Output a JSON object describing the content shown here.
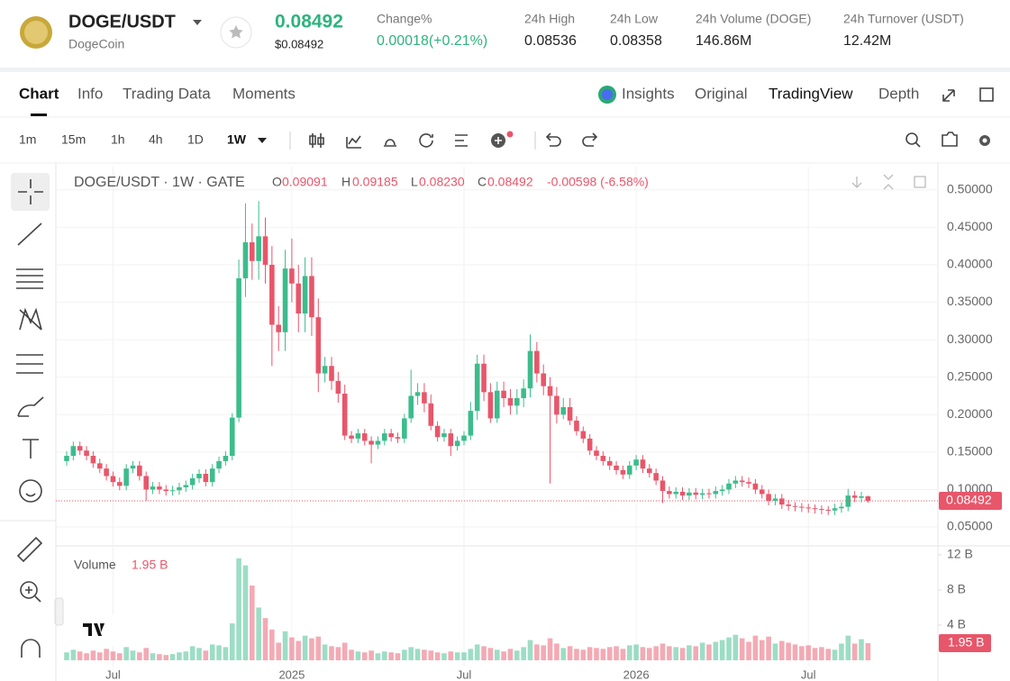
{
  "header": {
    "symbol": "DOGE/USDT",
    "name": "DogeCoin",
    "price": "0.08492",
    "price_usd": "$0.08492",
    "change_label": "Change%",
    "change": "0.00018(+0.21%)",
    "stats": [
      {
        "label": "24h High",
        "value": "0.08536"
      },
      {
        "label": "24h Low",
        "value": "0.08358"
      },
      {
        "label": "24h Volume (DOGE)",
        "value": "146.86M"
      },
      {
        "label": "24h Turnover (USDT)",
        "value": "12.42M"
      }
    ]
  },
  "nav": {
    "tabs": [
      "Chart",
      "Info",
      "Trading Data",
      "Moments"
    ],
    "views": [
      "Insights",
      "Original",
      "TradingView",
      "Depth"
    ],
    "intervals": [
      "1m",
      "15m",
      "1h",
      "4h",
      "1D",
      "1W"
    ]
  },
  "chart_data": {
    "type": "candlestick",
    "title": "DOGE/USDT · 1W · GATE",
    "legend": {
      "o_label": "O",
      "o": "0.09091",
      "h_label": "H",
      "h": "0.09185",
      "l_label": "L",
      "l": "0.08230",
      "c_label": "C",
      "c": "0.08492",
      "change": "-0.00598 (-6.58%)"
    },
    "volume_title": "Volume",
    "volume_label": "1.95 B",
    "up_color": "#3cbc8c",
    "down_color": "#e8566a",
    "categories": [
      null,
      null,
      null,
      null,
      null,
      null,
      null,
      "Jul",
      null,
      null,
      null,
      null,
      null,
      null,
      null,
      null,
      null,
      null,
      null,
      null,
      null,
      null,
      null,
      null,
      null,
      null,
      null,
      null,
      null,
      null,
      null,
      null,
      null,
      null,
      "2025",
      null,
      null,
      null,
      null,
      null,
      null,
      null,
      null,
      null,
      null,
      null,
      null,
      null,
      null,
      null,
      null,
      null,
      null,
      null,
      null,
      null,
      null,
      null,
      null,
      null,
      "Jul",
      null,
      null,
      null,
      null,
      null,
      null,
      null,
      null,
      null,
      null,
      null,
      null,
      null,
      null,
      null,
      null,
      null,
      null,
      null,
      null,
      null,
      null,
      null,
      null,
      null,
      "2026",
      null,
      null,
      null,
      null,
      null,
      null,
      null,
      null,
      null,
      null,
      null,
      null,
      null,
      null,
      null,
      null,
      null,
      null,
      null,
      null,
      null,
      null,
      null,
      null,
      null,
      "Jul",
      null,
      null,
      null,
      null,
      null,
      null,
      null,
      null,
      null
    ],
    "open": [
      0.138,
      0.145,
      0.158,
      0.152,
      0.145,
      0.135,
      0.128,
      0.118,
      0.11,
      0.105,
      0.128,
      0.132,
      0.118,
      0.1,
      0.104,
      0.1,
      0.098,
      0.099,
      0.103,
      0.106,
      0.115,
      0.121,
      0.11,
      0.128,
      0.138,
      0.145,
      0.196,
      0.382,
      0.43,
      0.405,
      0.438,
      0.4,
      0.32,
      0.31,
      0.395,
      0.375,
      0.335,
      0.385,
      0.33,
      0.255,
      0.265,
      0.245,
      0.228,
      0.172,
      0.168,
      0.175,
      0.165,
      0.16,
      0.165,
      0.175,
      0.17,
      0.168,
      0.195,
      0.225,
      0.23,
      0.215,
      0.185,
      0.17,
      0.175,
      0.158,
      0.165,
      0.172,
      0.205,
      0.268,
      0.23,
      0.195,
      0.232,
      0.222,
      0.212,
      0.222,
      0.235,
      0.285,
      0.255,
      0.238,
      0.225,
      0.2,
      0.21,
      0.192,
      0.178,
      0.168,
      0.152,
      0.145,
      0.138,
      0.132,
      0.126,
      0.12,
      0.132,
      0.14,
      0.128,
      0.122,
      0.112,
      0.098,
      0.094,
      0.097,
      0.092,
      0.096,
      0.093,
      0.095,
      0.094,
      0.098,
      0.1,
      0.108,
      0.112,
      0.11,
      0.108,
      0.1,
      0.094,
      0.085,
      0.088,
      0.08,
      0.078,
      0.077,
      0.076,
      0.075,
      0.074,
      0.073,
      0.072,
      0.075,
      0.077,
      0.092,
      0.089,
      0.09091
    ],
    "high": [
      0.151,
      0.164,
      0.164,
      0.158,
      0.151,
      0.141,
      0.134,
      0.124,
      0.116,
      0.134,
      0.138,
      0.138,
      0.124,
      0.11,
      0.11,
      0.106,
      0.105,
      0.109,
      0.112,
      0.121,
      0.127,
      0.127,
      0.134,
      0.144,
      0.151,
      0.202,
      0.407,
      0.482,
      0.455,
      0.485,
      0.463,
      0.425,
      0.345,
      0.42,
      0.435,
      0.4,
      0.41,
      0.41,
      0.355,
      0.277,
      0.277,
      0.257,
      0.24,
      0.178,
      0.181,
      0.181,
      0.171,
      0.171,
      0.181,
      0.181,
      0.176,
      0.201,
      0.26,
      0.242,
      0.242,
      0.227,
      0.191,
      0.181,
      0.181,
      0.171,
      0.178,
      0.217,
      0.28,
      0.28,
      0.242,
      0.244,
      0.244,
      0.234,
      0.234,
      0.247,
      0.307,
      0.297,
      0.267,
      0.25,
      0.237,
      0.222,
      0.222,
      0.198,
      0.184,
      0.174,
      0.158,
      0.151,
      0.144,
      0.138,
      0.132,
      0.138,
      0.146,
      0.146,
      0.134,
      0.128,
      0.118,
      0.104,
      0.103,
      0.103,
      0.102,
      0.102,
      0.101,
      0.101,
      0.104,
      0.106,
      0.114,
      0.118,
      0.118,
      0.116,
      0.114,
      0.106,
      0.1,
      0.094,
      0.094,
      0.086,
      0.083,
      0.082,
      0.081,
      0.08,
      0.079,
      0.078,
      0.081,
      0.083,
      0.101,
      0.098,
      0.097,
      0.09185
    ],
    "low": [
      0.132,
      0.139,
      0.146,
      0.139,
      0.129,
      0.122,
      0.112,
      0.104,
      0.099,
      0.099,
      0.122,
      0.112,
      0.085,
      0.094,
      0.094,
      0.092,
      0.092,
      0.093,
      0.097,
      0.1,
      0.109,
      0.104,
      0.104,
      0.122,
      0.132,
      0.139,
      0.19,
      0.357,
      0.38,
      0.38,
      0.375,
      0.265,
      0.285,
      0.285,
      0.35,
      0.31,
      0.31,
      0.305,
      0.23,
      0.243,
      0.233,
      0.216,
      0.166,
      0.162,
      0.162,
      0.159,
      0.135,
      0.154,
      0.159,
      0.164,
      0.162,
      0.162,
      0.189,
      0.213,
      0.203,
      0.179,
      0.164,
      0.164,
      0.145,
      0.152,
      0.159,
      0.166,
      0.193,
      0.218,
      0.189,
      0.189,
      0.21,
      0.2,
      0.2,
      0.21,
      0.223,
      0.243,
      0.226,
      0.108,
      0.188,
      0.194,
      0.186,
      0.172,
      0.162,
      0.146,
      0.139,
      0.132,
      0.126,
      0.12,
      0.114,
      0.114,
      0.126,
      0.122,
      0.116,
      0.106,
      0.082,
      0.088,
      0.088,
      0.086,
      0.086,
      0.087,
      0.087,
      0.088,
      0.088,
      0.092,
      0.094,
      0.102,
      0.104,
      0.102,
      0.094,
      0.088,
      0.079,
      0.079,
      0.074,
      0.072,
      0.071,
      0.07,
      0.069,
      0.068,
      0.067,
      0.066,
      0.066,
      0.069,
      0.071,
      0.083,
      0.083,
      0.0823
    ],
    "close": [
      0.145,
      0.158,
      0.152,
      0.145,
      0.135,
      0.128,
      0.118,
      0.11,
      0.105,
      0.128,
      0.132,
      0.118,
      0.1,
      0.104,
      0.1,
      0.098,
      0.099,
      0.103,
      0.106,
      0.115,
      0.121,
      0.11,
      0.128,
      0.138,
      0.145,
      0.196,
      0.382,
      0.43,
      0.405,
      0.438,
      0.4,
      0.32,
      0.31,
      0.395,
      0.375,
      0.335,
      0.385,
      0.33,
      0.255,
      0.265,
      0.245,
      0.228,
      0.172,
      0.168,
      0.175,
      0.165,
      0.16,
      0.165,
      0.175,
      0.17,
      0.168,
      0.195,
      0.225,
      0.23,
      0.215,
      0.185,
      0.17,
      0.175,
      0.158,
      0.165,
      0.172,
      0.205,
      0.268,
      0.23,
      0.195,
      0.232,
      0.222,
      0.212,
      0.222,
      0.235,
      0.285,
      0.255,
      0.238,
      0.225,
      0.2,
      0.21,
      0.192,
      0.178,
      0.168,
      0.152,
      0.145,
      0.138,
      0.132,
      0.126,
      0.12,
      0.132,
      0.14,
      0.128,
      0.122,
      0.112,
      0.098,
      0.094,
      0.097,
      0.092,
      0.096,
      0.093,
      0.095,
      0.094,
      0.098,
      0.1,
      0.108,
      0.112,
      0.11,
      0.108,
      0.1,
      0.094,
      0.085,
      0.088,
      0.08,
      0.078,
      0.077,
      0.076,
      0.075,
      0.074,
      0.073,
      0.072,
      0.075,
      0.077,
      0.092,
      0.089,
      0.09091,
      0.08492
    ],
    "volume": [
      0.9,
      1.2,
      1.0,
      0.8,
      1.1,
      0.9,
      1.3,
      1.0,
      0.8,
      1.5,
      1.1,
      0.9,
      1.4,
      0.8,
      0.7,
      0.6,
      0.7,
      0.9,
      1.0,
      1.6,
      1.4,
      1.1,
      1.8,
      1.7,
      1.5,
      4.2,
      11.6,
      10.8,
      8.5,
      6.0,
      4.8,
      3.5,
      2.0,
      3.3,
      2.6,
      2.2,
      2.8,
      2.5,
      2.7,
      1.8,
      1.6,
      1.5,
      2.0,
      1.2,
      1.0,
      0.9,
      1.1,
      0.8,
      1.0,
      0.9,
      0.8,
      1.2,
      1.5,
      1.3,
      1.2,
      1.1,
      0.9,
      0.8,
      1.0,
      0.9,
      0.9,
      1.3,
      1.8,
      1.6,
      1.4,
      1.2,
      1.0,
      1.3,
      1.1,
      1.5,
      2.3,
      1.8,
      1.7,
      2.5,
      1.9,
      1.4,
      1.6,
      1.3,
      1.2,
      1.5,
      1.4,
      1.3,
      1.5,
      1.6,
      1.3,
      1.7,
      1.8,
      1.5,
      1.4,
      1.6,
      1.9,
      1.6,
      1.5,
      1.4,
      1.7,
      1.6,
      2.0,
      1.8,
      2.1,
      2.3,
      2.6,
      2.9,
      2.5,
      2.1,
      2.8,
      2.3,
      2.7,
      1.9,
      2.2,
      2.0,
      1.8,
      1.6,
      1.7,
      1.4,
      1.5,
      1.3,
      1.2,
      1.9,
      2.8,
      1.9,
      2.4,
      1.95
    ],
    "ylim": [
      0.026,
      0.531
    ],
    "yticks": [
      {
        "value": 0.5,
        "label": "0.50000"
      },
      {
        "value": 0.45,
        "label": "0.45000"
      },
      {
        "value": 0.4,
        "label": "0.40000"
      },
      {
        "value": 0.35,
        "label": "0.35000"
      },
      {
        "value": 0.3,
        "label": "0.30000"
      },
      {
        "value": 0.25,
        "label": "0.25000"
      },
      {
        "value": 0.2,
        "label": "0.20000"
      },
      {
        "value": 0.15,
        "label": "0.15000"
      },
      {
        "value": 0.1,
        "label": "0.10000"
      },
      {
        "value": 0.05,
        "label": "0.05000"
      }
    ],
    "volume_ylim": [
      0,
      12.4
    ],
    "volume_yticks": [
      {
        "value": 12,
        "label": "12 B"
      },
      {
        "value": 8,
        "label": "8 B"
      },
      {
        "value": 4,
        "label": "4 B"
      }
    ],
    "grid": true
  }
}
